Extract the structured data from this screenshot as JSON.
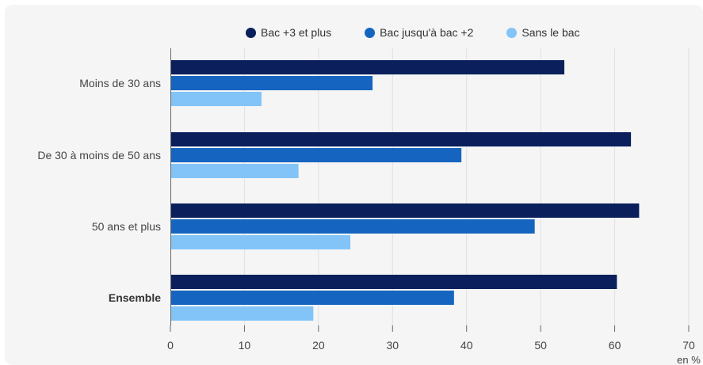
{
  "chart_data": {
    "type": "bar",
    "orientation": "horizontal",
    "categories": [
      "Moins de 30 ans",
      "De 30 à moins de 50 ans",
      "50 ans et plus",
      "Ensemble"
    ],
    "bold_categories": [
      "Ensemble"
    ],
    "series": [
      {
        "name": "Bac +3 et plus",
        "color": "#0a1f5c",
        "values": [
          53.2,
          62.2,
          63.3,
          60.3
        ]
      },
      {
        "name": "Bac jusqu'à bac +2",
        "color": "#1565c0",
        "values": [
          27.3,
          39.3,
          49.2,
          38.3
        ]
      },
      {
        "name": "Sans le bac",
        "color": "#82c4f8",
        "values": [
          12.3,
          17.3,
          24.3,
          19.3
        ]
      }
    ],
    "xlim": [
      0,
      70
    ],
    "xticks": [
      "0",
      "10",
      "20",
      "30",
      "40",
      "50",
      "60",
      "70"
    ],
    "xlabel": "en %",
    "grid": true,
    "legend_position": "top"
  }
}
